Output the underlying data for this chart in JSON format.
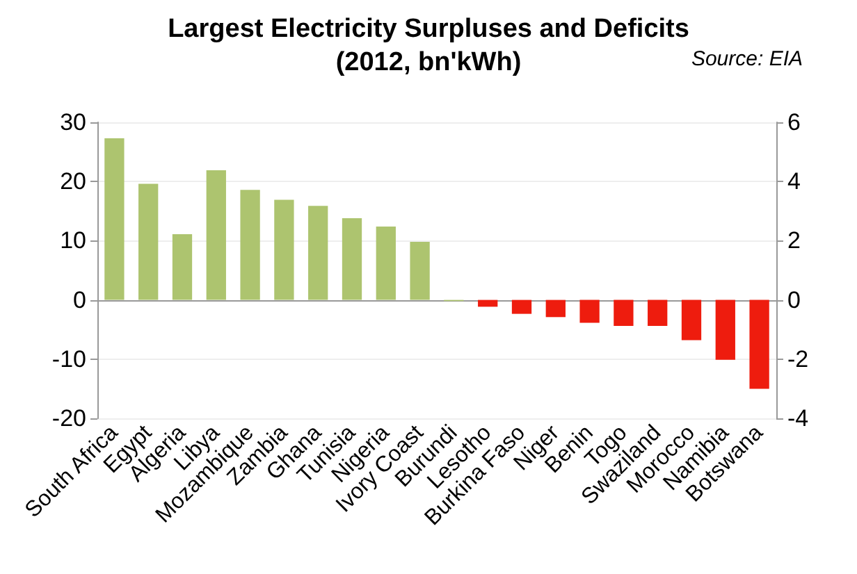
{
  "chart_data": {
    "type": "bar",
    "title": "Largest Electricity Surpluses and Deficits\n(2012, bn'kWh)",
    "annotations": [
      "Source: EIA"
    ],
    "categories": [
      "South Africa",
      "Egypt",
      "Algeria",
      "Libya",
      "Mozambique",
      "Zambia",
      "Ghana",
      "Tunisia",
      "Nigeria",
      "Ivory Coast",
      "Burundi",
      "Lesotho",
      "Burkina Faso",
      "Niger",
      "Benin",
      "Togo",
      "Swaziland",
      "Morocco",
      "Namibia",
      "Botswana"
    ],
    "series": [
      {
        "color": "#adc46f",
        "values": [
          27.3,
          19.6,
          11.1,
          21.9,
          18.6,
          16.9,
          15.9,
          13.8,
          12.4,
          9.8,
          -0.2,
          null,
          null,
          null,
          null,
          null,
          null,
          null,
          null,
          null
        ]
      },
      {
        "color": "#ee1c0e",
        "axis": "y2",
        "values": [
          null,
          null,
          null,
          null,
          null,
          null,
          null,
          null,
          null,
          null,
          null,
          -0.23,
          -0.47,
          -0.58,
          -0.77,
          -0.88,
          -0.88,
          -1.36,
          -2.02,
          -3.0
        ]
      }
    ],
    "ylim": [
      -20,
      30
    ],
    "yticks": [
      -20,
      -10,
      0,
      10,
      20,
      30
    ],
    "y2lim": [
      -4,
      6
    ],
    "y2ticks": [
      -4,
      -2,
      0,
      2,
      4,
      6
    ],
    "grid": true
  }
}
